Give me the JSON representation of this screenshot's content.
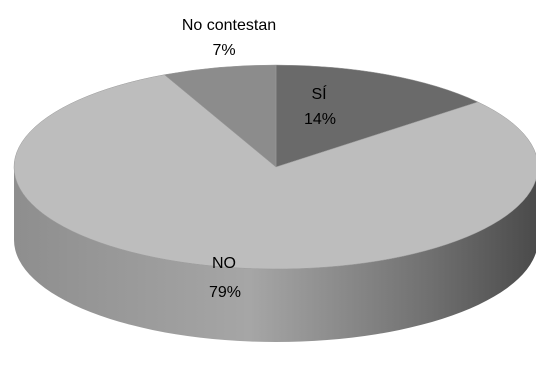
{
  "chart_data": {
    "type": "pie",
    "style": "3d",
    "slices": [
      {
        "label": "SÍ",
        "value": 14,
        "display": "14%",
        "color": "#6a6a6a"
      },
      {
        "label": "NO",
        "value": 79,
        "display": "79%",
        "color": "#bdbdbd"
      },
      {
        "label": "No contestan",
        "value": 7,
        "display": "7%",
        "color": "#8c8c8c"
      }
    ],
    "title": "",
    "legend": "none"
  }
}
